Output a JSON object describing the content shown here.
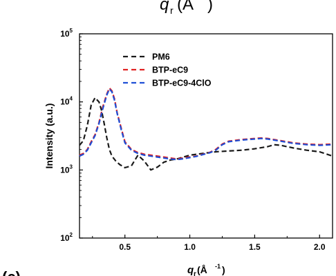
{
  "top_fragment": {
    "text": "q",
    "sub": "r",
    "rest": " (Å",
    "tail": "   )"
  },
  "panel_label": "(c)",
  "chart_data": {
    "type": "line",
    "title": "",
    "xlabel": {
      "symbol": "q",
      "sub": "r",
      "unit_open": " (Å",
      "exp": "-1",
      "unit_close": ")"
    },
    "ylabel": "Intensity (a.u.)",
    "xlim": [
      0.15,
      2.1
    ],
    "ylim_log10": [
      2,
      5
    ],
    "yscale": "log",
    "grid": false,
    "legend_position": "top-left",
    "x_ticks": [
      0.5,
      1.0,
      1.5,
      2.0
    ],
    "x_tick_labels": [
      "0.5",
      "1.0",
      "1.5",
      "2.0"
    ],
    "y_ticks": [
      {
        "base": "10",
        "exp": "2",
        "log": 2
      },
      {
        "base": "10",
        "exp": "3",
        "log": 3
      },
      {
        "base": "10",
        "exp": "4",
        "log": 4
      },
      {
        "base": "10",
        "exp": "5",
        "log": 5
      }
    ],
    "series": [
      {
        "name": "PM6",
        "color": "#1a1a1a",
        "x": [
          0.15,
          0.18,
          0.21,
          0.24,
          0.27,
          0.3,
          0.32,
          0.34,
          0.36,
          0.38,
          0.4,
          0.43,
          0.46,
          0.5,
          0.55,
          0.6,
          0.65,
          0.7,
          0.75,
          0.8,
          0.85,
          0.9,
          0.95,
          1.0,
          1.05,
          1.1,
          1.15,
          1.2,
          1.3,
          1.4,
          1.5,
          1.6,
          1.65,
          1.7,
          1.8,
          1.9,
          2.0,
          2.1
        ],
        "y": [
          2300,
          2700,
          4500,
          9000,
          11500,
          10000,
          7500,
          4800,
          3000,
          2000,
          1600,
          1350,
          1200,
          1080,
          1150,
          1650,
          1350,
          1000,
          1100,
          1300,
          1400,
          1450,
          1550,
          1650,
          1700,
          1750,
          1800,
          1850,
          1900,
          1950,
          2050,
          2200,
          2350,
          2300,
          2100,
          1950,
          1850,
          1600
        ]
      },
      {
        "name": "BTP-eC9",
        "color": "#e02020",
        "x": [
          0.15,
          0.18,
          0.21,
          0.24,
          0.27,
          0.3,
          0.33,
          0.36,
          0.38,
          0.4,
          0.42,
          0.44,
          0.47,
          0.5,
          0.55,
          0.6,
          0.65,
          0.7,
          0.75,
          0.8,
          0.85,
          0.9,
          0.95,
          1.0,
          1.05,
          1.1,
          1.15,
          1.2,
          1.25,
          1.3,
          1.4,
          1.5,
          1.55,
          1.6,
          1.7,
          1.8,
          1.9,
          2.0,
          2.1
        ],
        "y": [
          1650,
          1750,
          2000,
          2600,
          3300,
          5000,
          8500,
          13000,
          16000,
          14500,
          11000,
          7000,
          4200,
          2600,
          2000,
          1800,
          1700,
          1650,
          1600,
          1550,
          1500,
          1450,
          1500,
          1550,
          1600,
          1700,
          1800,
          2000,
          2400,
          2650,
          2800,
          2900,
          2950,
          2900,
          2700,
          2500,
          2400,
          2350,
          2400
        ]
      },
      {
        "name": "BTP-eC9-4ClO",
        "color": "#1f4fd6",
        "x": [
          0.15,
          0.18,
          0.21,
          0.24,
          0.27,
          0.3,
          0.33,
          0.36,
          0.38,
          0.4,
          0.42,
          0.44,
          0.47,
          0.5,
          0.55,
          0.6,
          0.65,
          0.7,
          0.75,
          0.8,
          0.85,
          0.9,
          0.95,
          1.0,
          1.05,
          1.1,
          1.15,
          1.2,
          1.25,
          1.3,
          1.4,
          1.5,
          1.55,
          1.6,
          1.7,
          1.8,
          1.9,
          2.0,
          2.1
        ],
        "y": [
          1600,
          1700,
          1950,
          2500,
          3200,
          4800,
          8000,
          12500,
          15500,
          14000,
          10500,
          6800,
          4000,
          2500,
          1950,
          1750,
          1650,
          1600,
          1550,
          1500,
          1450,
          1420,
          1460,
          1520,
          1580,
          1680,
          1780,
          1950,
          2350,
          2600,
          2750,
          2850,
          2900,
          2850,
          2650,
          2450,
          2350,
          2300,
          2350
        ]
      }
    ]
  }
}
